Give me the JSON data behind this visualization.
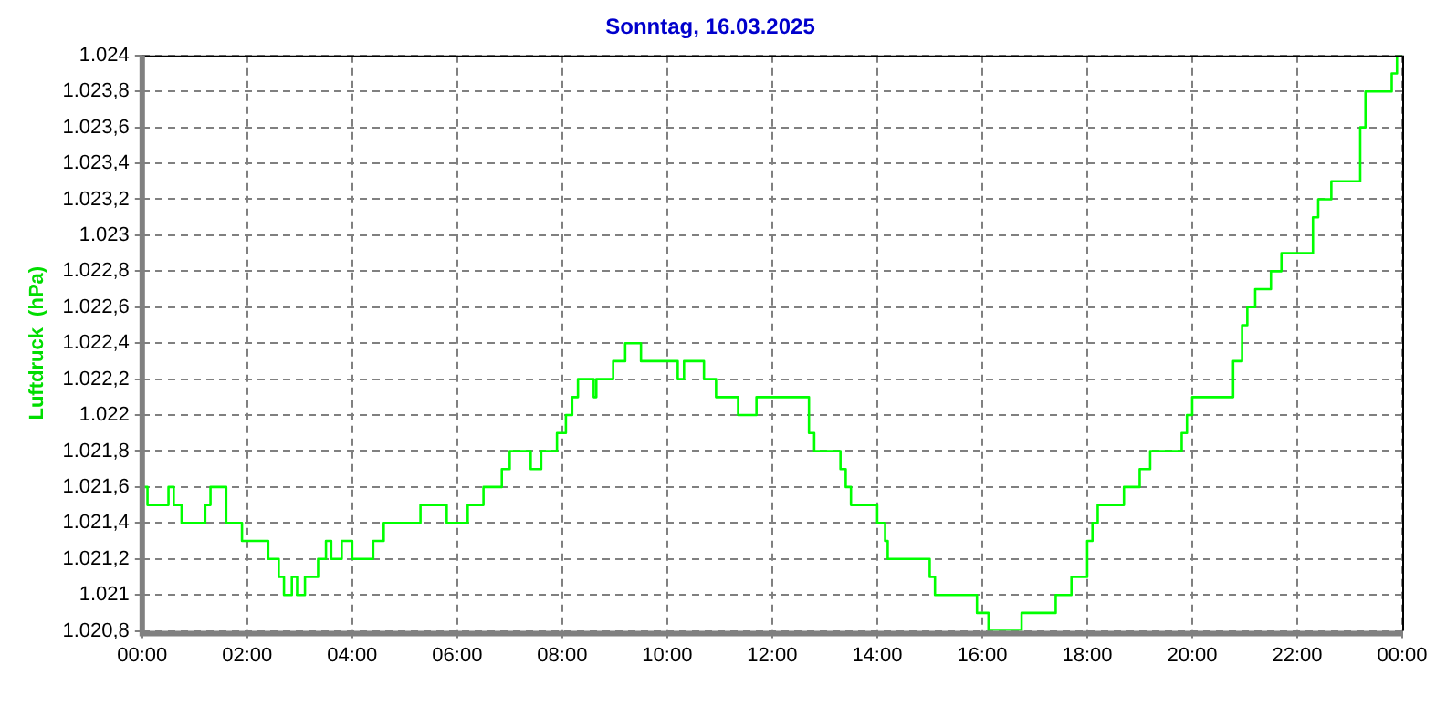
{
  "chart_data": {
    "type": "step",
    "title": "Sonntag, 16.03.2025",
    "ylabel": "Luftdruck  (hPa)",
    "x": [
      0,
      0.1,
      0.5,
      0.6,
      0.75,
      1.2,
      1.3,
      1.6,
      1.9,
      2.4,
      2.6,
      2.7,
      2.85,
      2.95,
      3.1,
      3.35,
      3.5,
      3.6,
      3.8,
      4.0,
      4.4,
      4.6,
      5.3,
      5.8,
      6.2,
      6.5,
      6.85,
      7.0,
      7.4,
      7.6,
      7.9,
      8.07,
      8.19,
      8.3,
      8.6,
      8.65,
      8.97,
      9.2,
      9.5,
      10.2,
      10.32,
      10.7,
      10.93,
      11.35,
      11.7,
      12.7,
      12.8,
      13.3,
      13.4,
      13.5,
      14.0,
      14.15,
      14.2,
      15.0,
      15.1,
      15.9,
      16.12,
      16.75,
      17.4,
      17.7,
      18.0,
      18.1,
      18.2,
      18.7,
      19.0,
      19.2,
      19.8,
      19.9,
      20.0,
      20.78,
      20.95,
      21.05,
      21.2,
      21.5,
      21.7,
      22.3,
      22.4,
      22.65,
      23.2,
      23.3,
      23.8,
      23.9,
      24.0
    ],
    "series": [
      {
        "color": "#00ff00",
        "values": [
          1021.5,
          1021.6,
          1021.5,
          1021.6,
          1021.5,
          1021.4,
          1021.5,
          1021.6,
          1021.4,
          1021.3,
          1021.2,
          1021.1,
          1021.0,
          1021.1,
          1021.0,
          1021.1,
          1021.2,
          1021.3,
          1021.2,
          1021.3,
          1021.2,
          1021.3,
          1021.4,
          1021.5,
          1021.4,
          1021.5,
          1021.6,
          1021.7,
          1021.8,
          1021.7,
          1021.8,
          1021.9,
          1022.0,
          1022.1,
          1022.2,
          1022.1,
          1022.2,
          1022.3,
          1022.4,
          1022.3,
          1022.2,
          1022.3,
          1022.2,
          1022.1,
          1022.0,
          1022.1,
          1021.9,
          1021.8,
          1021.7,
          1021.6,
          1021.5,
          1021.4,
          1021.3,
          1021.2,
          1021.1,
          1021.0,
          1020.9,
          1020.8,
          1020.9,
          1021.0,
          1021.1,
          1021.3,
          1021.4,
          1021.5,
          1021.6,
          1021.7,
          1021.8,
          1021.9,
          1022.0,
          1022.1,
          1022.3,
          1022.5,
          1022.6,
          1022.7,
          1022.8,
          1022.9,
          1023.1,
          1023.2,
          1023.3,
          1023.6,
          1023.8,
          1023.9,
          1024.0
        ]
      }
    ],
    "xlim": [
      0,
      24
    ],
    "xticks": [
      {
        "value": 0,
        "label": "00:00"
      },
      {
        "value": 2,
        "label": "02:00"
      },
      {
        "value": 4,
        "label": "04:00"
      },
      {
        "value": 6,
        "label": "06:00"
      },
      {
        "value": 8,
        "label": "08:00"
      },
      {
        "value": 10,
        "label": "10:00"
      },
      {
        "value": 12,
        "label": "12:00"
      },
      {
        "value": 14,
        "label": "14:00"
      },
      {
        "value": 16,
        "label": "16:00"
      },
      {
        "value": 18,
        "label": "18:00"
      },
      {
        "value": 20,
        "label": "20:00"
      },
      {
        "value": 22,
        "label": "22:00"
      },
      {
        "value": 24,
        "label": "00:00"
      }
    ],
    "ylim": [
      1020.8,
      1024
    ],
    "yticks": [
      {
        "value": 1020.8,
        "label": "1.020,8"
      },
      {
        "value": 1021,
        "label": "1.021"
      },
      {
        "value": 1021.2,
        "label": "1.021,2"
      },
      {
        "value": 1021.4,
        "label": "1.021,4"
      },
      {
        "value": 1021.6,
        "label": "1.021,6"
      },
      {
        "value": 1021.8,
        "label": "1.021,8"
      },
      {
        "value": 1022,
        "label": "1.022"
      },
      {
        "value": 1022.2,
        "label": "1.022,2"
      },
      {
        "value": 1022.4,
        "label": "1.022,4"
      },
      {
        "value": 1022.6,
        "label": "1.022,6"
      },
      {
        "value": 1022.8,
        "label": "1.022,8"
      },
      {
        "value": 1023,
        "label": "1.023"
      },
      {
        "value": 1023.2,
        "label": "1.023,2"
      },
      {
        "value": 1023.4,
        "label": "1.023,4"
      },
      {
        "value": 1023.6,
        "label": "1.023,6"
      },
      {
        "value": 1023.8,
        "label": "1.023,8"
      },
      {
        "value": 1024,
        "label": "1.024"
      }
    ],
    "grid": true,
    "legend": false,
    "marker": "none",
    "line_style": "solid"
  }
}
